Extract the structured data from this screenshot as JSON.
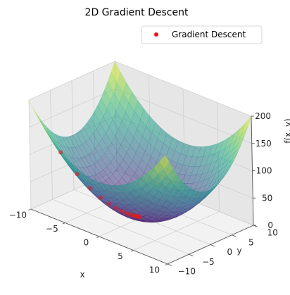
{
  "chart_data": {
    "type": "surface3d",
    "title": "2D Gradient Descent",
    "xlabel": "x",
    "ylabel": "y",
    "zlabel": "f(x, y)",
    "function": "x^2 + y^2",
    "xlim": [
      -10,
      10
    ],
    "ylim": [
      -10,
      10
    ],
    "zlim": [
      0,
      200
    ],
    "x_ticks": [
      -10,
      -5,
      0,
      5,
      10
    ],
    "y_ticks": [
      -10,
      -5,
      0,
      5,
      10
    ],
    "z_ticks": [
      0,
      50,
      100,
      150,
      200
    ],
    "x_tick_labels": [
      "−10",
      "−5",
      "0",
      "5",
      "10"
    ],
    "y_tick_labels": [
      "−10",
      "−5",
      "0",
      "5",
      "10"
    ],
    "z_tick_labels": [
      "0",
      "50",
      "100",
      "150",
      "200"
    ],
    "surface_colormap": "viridis",
    "surface_alpha": 0.55,
    "grid": true,
    "legend": {
      "position": "top-right",
      "entries": [
        "Gradient Descent"
      ]
    },
    "series": [
      {
        "name": "Gradient Descent",
        "color": "#e41a1c",
        "x": [
          -8.0,
          -6.4,
          -5.12,
          -4.1,
          -3.28,
          -2.62,
          -2.1,
          -1.68,
          -1.34,
          -1.07,
          -0.86,
          -0.69,
          -0.55,
          -0.44,
          -0.35,
          -0.28
        ],
        "y": [
          -6.0,
          -4.8,
          -3.84,
          -3.07,
          -2.46,
          -1.97,
          -1.57,
          -1.26,
          -1.01,
          -0.81,
          -0.64,
          -0.52,
          -0.41,
          -0.33,
          -0.26,
          -0.21
        ],
        "z": [
          100.0,
          64.0,
          40.96,
          26.2,
          16.8,
          10.7,
          6.87,
          4.4,
          2.81,
          1.8,
          1.15,
          0.74,
          0.47,
          0.3,
          0.19,
          0.12
        ]
      }
    ]
  }
}
